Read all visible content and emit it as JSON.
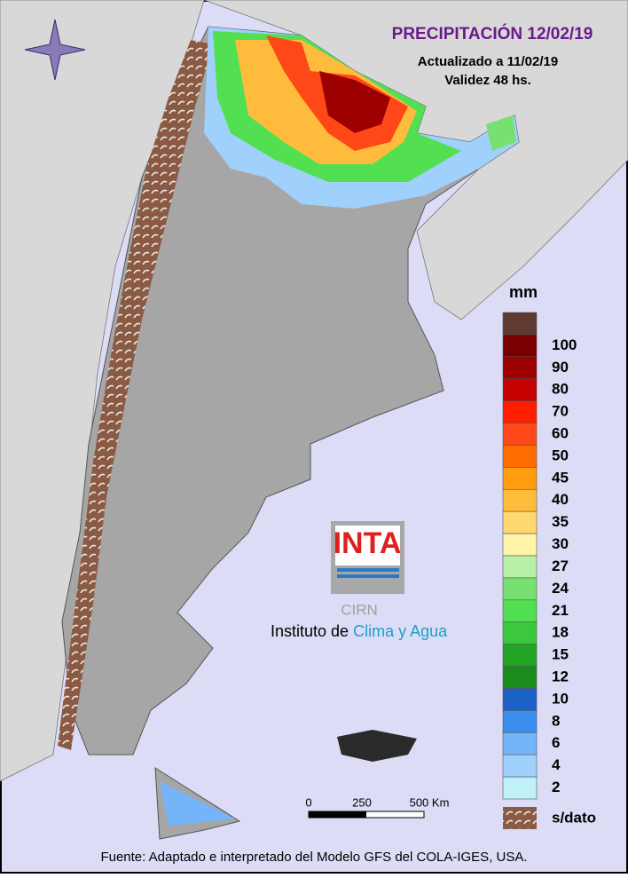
{
  "header": {
    "title": "PRECIPITACIÓN 12/02/19",
    "updated": "Actualizado a 11/02/19",
    "validity": "Validez 48 hs."
  },
  "legend": {
    "unit": "mm",
    "colors": [
      "#5e3a30",
      "#7a0000",
      "#9c0000",
      "#c40000",
      "#ff1e00",
      "#ff4818",
      "#ff6c00",
      "#ff9c10",
      "#ffbc3c",
      "#ffd870",
      "#fff4a8",
      "#b8f0a8",
      "#78e070",
      "#52e052",
      "#3cc83c",
      "#22a424",
      "#1a8c1c",
      "#1a62c8",
      "#3a8ef0",
      "#74b4f8",
      "#a0d0fc",
      "#c0f0f8"
    ],
    "labels": [
      "100",
      "90",
      "80",
      "70",
      "60",
      "50",
      "45",
      "40",
      "35",
      "30",
      "27",
      "24",
      "21",
      "18",
      "15",
      "12",
      "10",
      "8",
      "6",
      "4",
      "2"
    ],
    "no_data": "s/dato"
  },
  "scale_bar": {
    "labels": [
      "0",
      "250",
      "500 Km"
    ]
  },
  "logo": {
    "brand": "INTA",
    "center": "CIRN",
    "institute": "Instituto de",
    "institute_highlight": "Clima y Agua"
  },
  "footer": "Fuente: Adaptado e interpretado del Modelo GFS del COLA-IGES, USA."
}
